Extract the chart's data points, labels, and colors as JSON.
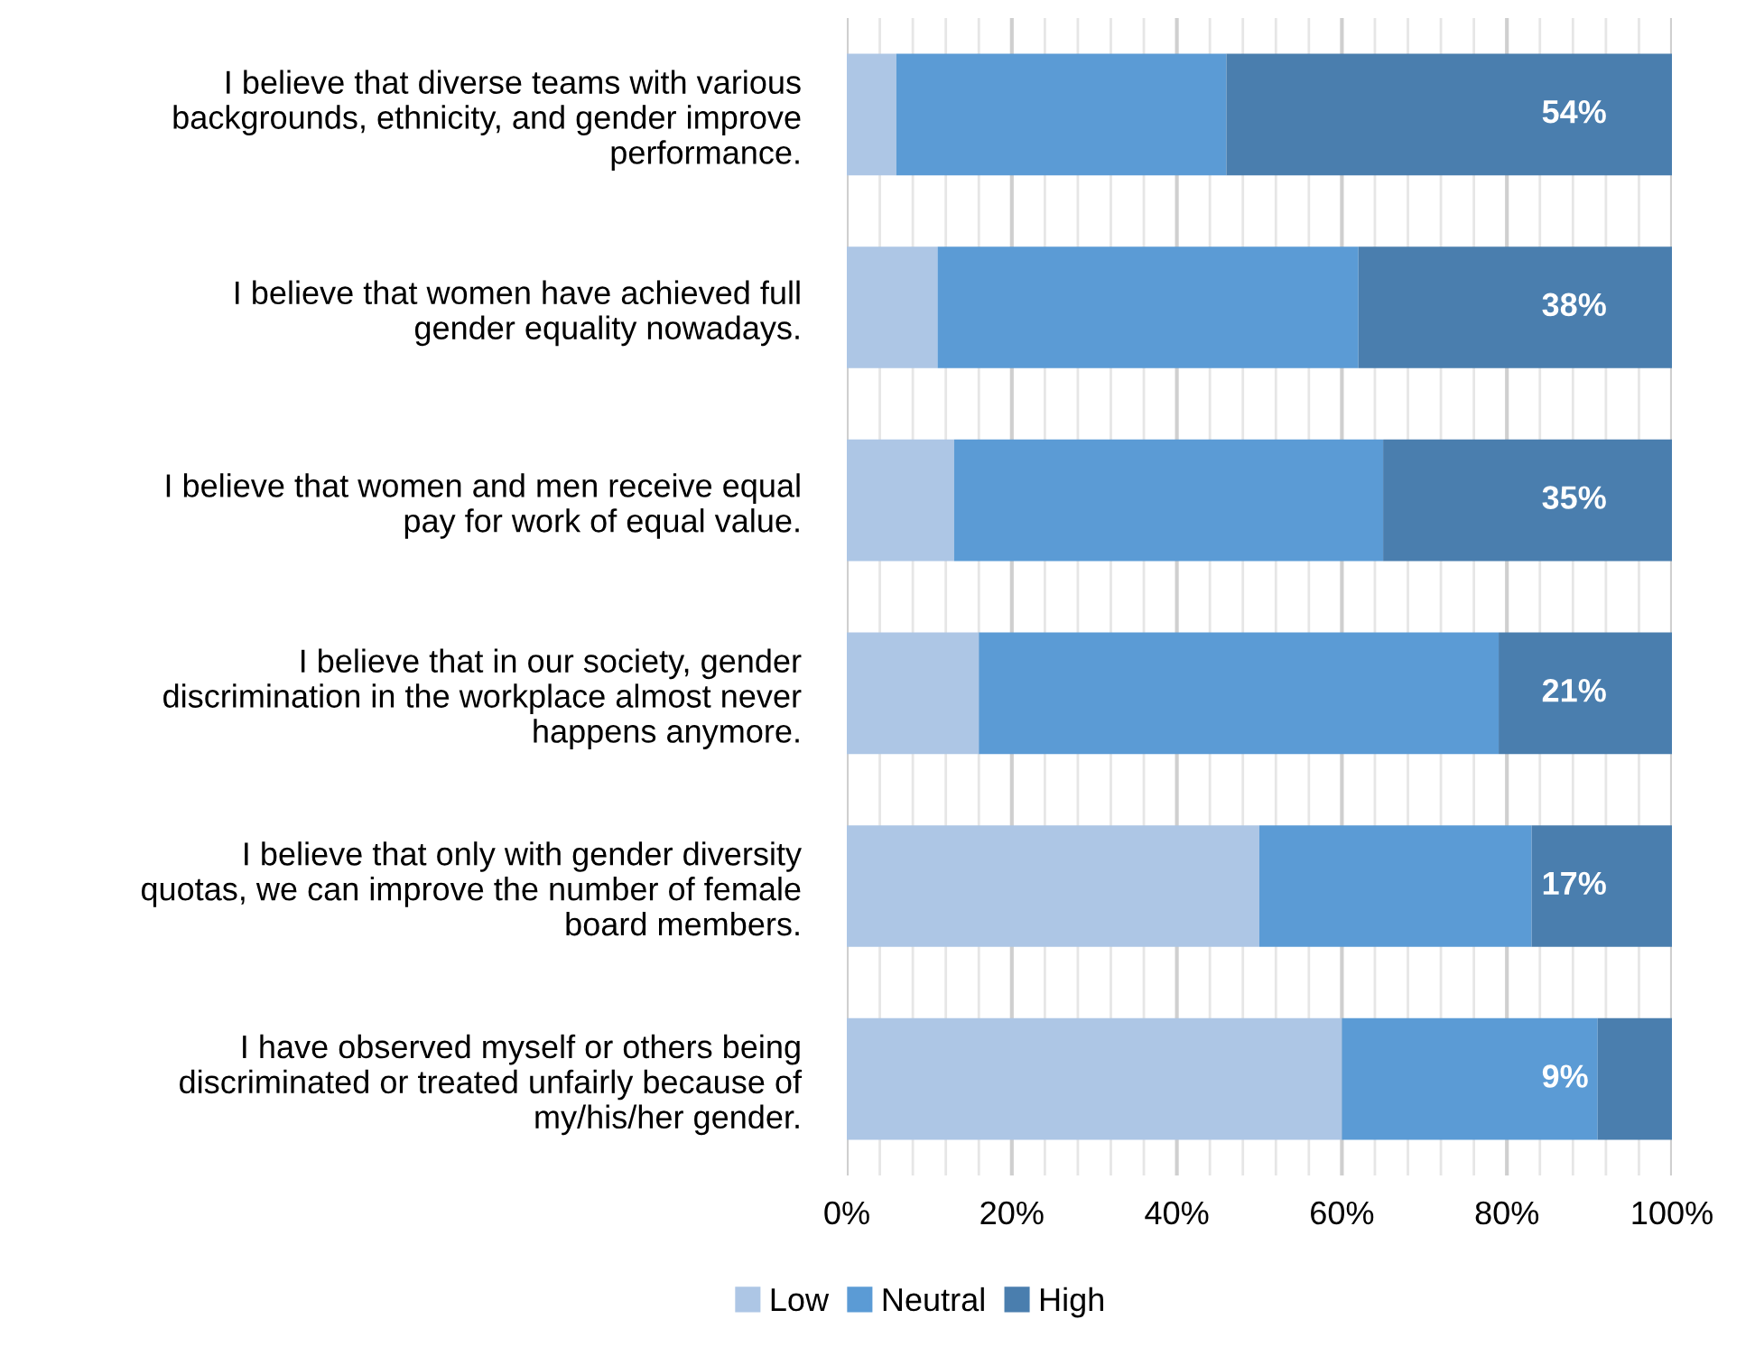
{
  "chart_data": {
    "type": "bar",
    "orientation": "horizontal",
    "stacked": true,
    "categories": [
      "I believe that diverse teams with various\nbackgrounds, ethnicity, and gender improve\nperformance.",
      "I believe that women have achieved full\ngender equality nowadays.",
      "I believe that women and men receive equal\npay for work of equal value.",
      "I believe that in our society, gender\ndiscrimination in the workplace almost never\nhappens anymore.",
      "I believe that only with gender diversity\nquotas, we can improve the number of female\nboard members.",
      "I have observed myself or others being\ndiscriminated or treated unfairly because of\nmy/his/her gender."
    ],
    "series": [
      {
        "name": "Low",
        "color": "#adc6e5",
        "values": [
          6,
          11,
          13,
          16,
          50,
          60
        ]
      },
      {
        "name": "Neutral",
        "color": "#5b9bd5",
        "values": [
          40,
          51,
          52,
          63,
          33,
          31
        ]
      },
      {
        "name": "High",
        "color": "#4a7eae",
        "values": [
          54,
          38,
          35,
          21,
          17,
          9
        ],
        "value_labels": [
          "54%",
          "38%",
          "35%",
          "21%",
          "17%",
          "9%"
        ]
      }
    ],
    "xlim": [
      0,
      100
    ],
    "xticks": [
      {
        "value": 0,
        "label": "0%"
      },
      {
        "value": 4,
        "label": null
      },
      {
        "value": 8,
        "label": null
      },
      {
        "value": 12,
        "label": null
      },
      {
        "value": 16,
        "label": null
      },
      {
        "value": 20,
        "label": "20%"
      },
      {
        "value": 24,
        "label": null
      },
      {
        "value": 28,
        "label": null
      },
      {
        "value": 32,
        "label": null
      },
      {
        "value": 36,
        "label": null
      },
      {
        "value": 40,
        "label": "40%"
      },
      {
        "value": 44,
        "label": null
      },
      {
        "value": 48,
        "label": null
      },
      {
        "value": 52,
        "label": null
      },
      {
        "value": 56,
        "label": null
      },
      {
        "value": 60,
        "label": "60%"
      },
      {
        "value": 64,
        "label": null
      },
      {
        "value": 68,
        "label": null
      },
      {
        "value": 72,
        "label": null
      },
      {
        "value": 76,
        "label": null
      },
      {
        "value": 80,
        "label": "80%"
      },
      {
        "value": 84,
        "label": null
      },
      {
        "value": 88,
        "label": null
      },
      {
        "value": 92,
        "label": null
      },
      {
        "value": 96,
        "label": null
      },
      {
        "value": 100,
        "label": "100%"
      }
    ],
    "grid": "x",
    "legend": "bottom"
  }
}
